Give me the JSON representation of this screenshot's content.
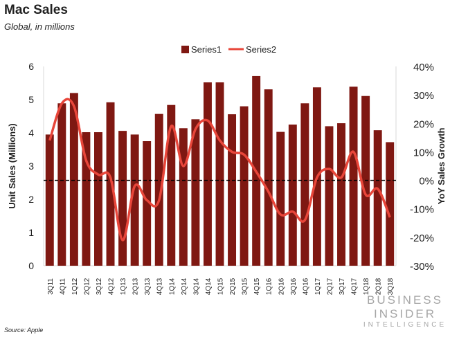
{
  "title": "Mac Sales",
  "subtitle": "Global, in millions",
  "source": "Source: Apple",
  "logo": {
    "line1": "BUSINESS INSIDER",
    "line2": "INTELLIGENCE"
  },
  "colors": {
    "bar": "#7f1812",
    "line": "#e8463a",
    "zero_line": "#000000"
  },
  "chart_data": {
    "type": "bar+line",
    "title": "Mac Sales",
    "subtitle": "Global, in millions",
    "categories": [
      "3Q11",
      "4Q11",
      "1Q12",
      "2Q12",
      "3Q12",
      "4Q12",
      "1Q13",
      "2Q13",
      "3Q13",
      "4Q13",
      "1Q14",
      "2Q14",
      "3Q14",
      "4Q14",
      "1Q15",
      "2Q15",
      "3Q15",
      "4Q15",
      "1Q16",
      "2Q16",
      "3Q16",
      "4Q16",
      "1Q17",
      "2Q17",
      "3Q17",
      "4Q17",
      "1Q18",
      "2Q18",
      "3Q18"
    ],
    "series": [
      {
        "name": "Series1",
        "type": "bar",
        "axis": "left",
        "values": [
          3.95,
          4.89,
          5.2,
          4.02,
          4.02,
          4.92,
          4.06,
          3.95,
          3.75,
          4.57,
          4.84,
          4.14,
          4.41,
          5.52,
          5.52,
          4.56,
          4.8,
          5.71,
          5.31,
          4.03,
          4.25,
          4.89,
          5.37,
          4.2,
          4.29,
          5.39,
          5.11,
          4.08,
          3.72
        ]
      },
      {
        "name": "Series2",
        "type": "line",
        "axis": "right",
        "values": [
          14,
          27,
          26,
          7,
          2,
          1,
          -21,
          -2,
          -7,
          -7,
          19,
          5,
          18,
          21,
          14,
          10,
          9,
          3,
          -4,
          -12,
          -11,
          -14,
          1,
          4,
          1,
          10,
          -5,
          -3,
          -13
        ]
      }
    ],
    "ylabel": "Unit Sales (Millions)",
    "y2label": "YoY Sales Growth",
    "ylim": [
      0,
      6
    ],
    "yticks": [
      "0",
      "1",
      "2",
      "3",
      "4",
      "5",
      "6"
    ],
    "y2lim": [
      -30,
      40
    ],
    "y2ticks": [
      "-30%",
      "-20%",
      "-10%",
      "0%",
      "10%",
      "20%",
      "30%",
      "40%"
    ],
    "reference_line": {
      "axis": "right",
      "value": 0,
      "style": "dashed"
    },
    "legend": "top",
    "grid": false
  }
}
